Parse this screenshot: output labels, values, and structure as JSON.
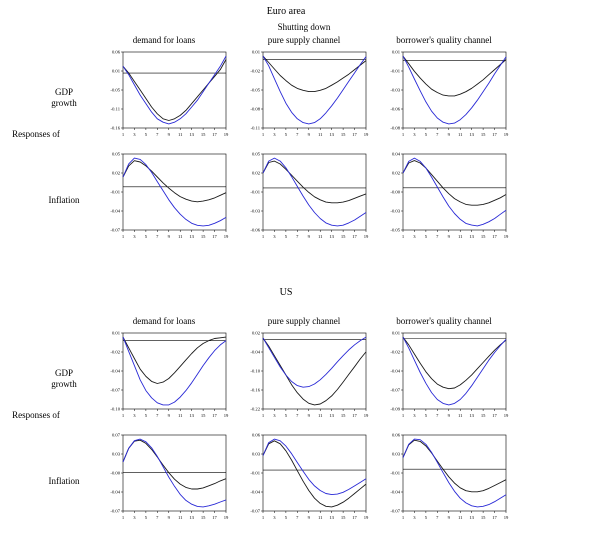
{
  "panels": [
    {
      "title": "Euro area",
      "side_label": "Responses of",
      "rows": [
        "GDP growth",
        "Inflation"
      ],
      "columns": [
        {
          "subtitle": "",
          "label": "demand for loans"
        },
        {
          "subtitle": "Shutting down",
          "label": "pure supply channel"
        },
        {
          "subtitle": "",
          "label": "borrower's quality channel"
        }
      ]
    },
    {
      "title": "US",
      "side_label": "Responses of",
      "rows": [
        "GDP growth",
        "Inflation"
      ],
      "columns": [
        {
          "subtitle": "",
          "label": "demand for loans"
        },
        {
          "subtitle": "",
          "label": "pure supply channel"
        },
        {
          "subtitle": "",
          "label": "borrower's quality channel"
        }
      ]
    }
  ],
  "line_colors": {
    "black": "#1a1a1a",
    "blue": "#2929d6"
  },
  "chart_data": [
    {
      "type": "line",
      "panel": "Euro area",
      "row": "GDP growth",
      "column": "demand for loans",
      "x_start": 1,
      "x_step": 1,
      "xticks": [
        1,
        3,
        5,
        7,
        9,
        11,
        13,
        15,
        17,
        19
      ],
      "series": [
        {
          "name": "black",
          "color": "#1a1a1a",
          "values": [
            0.02,
            0.0,
            -0.025,
            -0.05,
            -0.075,
            -0.1,
            -0.12,
            -0.135,
            -0.14,
            -0.135,
            -0.125,
            -0.11,
            -0.09,
            -0.07,
            -0.05,
            -0.03,
            -0.01,
            0.01,
            0.04
          ]
        },
        {
          "name": "blue",
          "color": "#2929d6",
          "values": [
            0.02,
            -0.005,
            -0.035,
            -0.065,
            -0.09,
            -0.115,
            -0.135,
            -0.145,
            -0.15,
            -0.145,
            -0.135,
            -0.12,
            -0.1,
            -0.08,
            -0.055,
            -0.03,
            -0.005,
            0.02,
            0.05
          ]
        }
      ]
    },
    {
      "type": "line",
      "panel": "Euro area",
      "row": "GDP growth",
      "column": "pure supply channel",
      "x_start": 1,
      "x_step": 1,
      "xticks": [
        1,
        3,
        5,
        7,
        9,
        11,
        13,
        15,
        17,
        19
      ],
      "series": [
        {
          "name": "black",
          "color": "#1a1a1a",
          "values": [
            0.005,
            -0.005,
            -0.015,
            -0.025,
            -0.033,
            -0.04,
            -0.045,
            -0.048,
            -0.05,
            -0.05,
            -0.048,
            -0.045,
            -0.04,
            -0.035,
            -0.029,
            -0.023,
            -0.016,
            -0.009,
            -0.002
          ]
        },
        {
          "name": "blue",
          "color": "#2929d6",
          "values": [
            0.005,
            -0.01,
            -0.03,
            -0.05,
            -0.068,
            -0.082,
            -0.092,
            -0.098,
            -0.1,
            -0.098,
            -0.092,
            -0.083,
            -0.072,
            -0.06,
            -0.047,
            -0.034,
            -0.021,
            -0.008,
            0.004
          ]
        }
      ]
    },
    {
      "type": "line",
      "panel": "Euro area",
      "row": "GDP growth",
      "column": "borrower's quality channel",
      "x_start": 1,
      "x_step": 1,
      "xticks": [
        1,
        3,
        5,
        7,
        9,
        11,
        13,
        15,
        17,
        19
      ],
      "series": [
        {
          "name": "black",
          "color": "#1a1a1a",
          "values": [
            0.005,
            -0.004,
            -0.013,
            -0.021,
            -0.028,
            -0.034,
            -0.038,
            -0.041,
            -0.042,
            -0.042,
            -0.04,
            -0.037,
            -0.033,
            -0.028,
            -0.023,
            -0.017,
            -0.011,
            -0.005,
            0.001
          ]
        },
        {
          "name": "blue",
          "color": "#2929d6",
          "values": [
            0.005,
            -0.008,
            -0.022,
            -0.036,
            -0.049,
            -0.06,
            -0.068,
            -0.073,
            -0.075,
            -0.074,
            -0.07,
            -0.064,
            -0.056,
            -0.047,
            -0.037,
            -0.027,
            -0.016,
            -0.006,
            0.004
          ]
        }
      ]
    },
    {
      "type": "line",
      "panel": "Euro area",
      "row": "Inflation",
      "column": "demand for loans",
      "x_start": 1,
      "x_step": 1,
      "xticks": [
        1,
        3,
        5,
        7,
        9,
        11,
        13,
        15,
        17,
        19
      ],
      "series": [
        {
          "name": "black",
          "color": "#1a1a1a",
          "values": [
            0.015,
            0.032,
            0.04,
            0.038,
            0.032,
            0.024,
            0.015,
            0.006,
            -0.002,
            -0.009,
            -0.015,
            -0.019,
            -0.022,
            -0.023,
            -0.022,
            -0.02,
            -0.017,
            -0.013,
            -0.009
          ]
        },
        {
          "name": "blue",
          "color": "#2929d6",
          "values": [
            0.015,
            0.035,
            0.044,
            0.042,
            0.034,
            0.022,
            0.008,
            -0.006,
            -0.02,
            -0.032,
            -0.042,
            -0.05,
            -0.056,
            -0.059,
            -0.06,
            -0.059,
            -0.056,
            -0.052,
            -0.047
          ]
        }
      ]
    },
    {
      "type": "line",
      "panel": "Euro area",
      "row": "Inflation",
      "column": "pure supply channel",
      "x_start": 1,
      "x_step": 1,
      "xticks": [
        1,
        3,
        5,
        7,
        9,
        11,
        13,
        15,
        17,
        19
      ],
      "series": [
        {
          "name": "black",
          "color": "#1a1a1a",
          "values": [
            0.02,
            0.034,
            0.036,
            0.032,
            0.025,
            0.017,
            0.009,
            0.001,
            -0.006,
            -0.012,
            -0.016,
            -0.019,
            -0.02,
            -0.02,
            -0.019,
            -0.017,
            -0.014,
            -0.011,
            -0.008
          ]
        },
        {
          "name": "blue",
          "color": "#2929d6",
          "values": [
            0.02,
            0.036,
            0.04,
            0.036,
            0.027,
            0.015,
            0.002,
            -0.011,
            -0.023,
            -0.033,
            -0.041,
            -0.047,
            -0.05,
            -0.051,
            -0.05,
            -0.047,
            -0.043,
            -0.038,
            -0.033
          ]
        }
      ]
    },
    {
      "type": "line",
      "panel": "Euro area",
      "row": "Inflation",
      "column": "borrower's quality channel",
      "x_start": 1,
      "x_step": 1,
      "xticks": [
        1,
        3,
        5,
        7,
        9,
        11,
        13,
        15,
        17,
        19
      ],
      "series": [
        {
          "name": "black",
          "color": "#1a1a1a",
          "values": [
            0.018,
            0.03,
            0.033,
            0.03,
            0.024,
            0.016,
            0.008,
            0.0,
            -0.007,
            -0.013,
            -0.017,
            -0.02,
            -0.021,
            -0.021,
            -0.02,
            -0.018,
            -0.015,
            -0.012,
            -0.008
          ]
        },
        {
          "name": "blue",
          "color": "#2929d6",
          "values": [
            0.018,
            0.032,
            0.036,
            0.032,
            0.024,
            0.013,
            0.001,
            -0.011,
            -0.022,
            -0.031,
            -0.038,
            -0.043,
            -0.045,
            -0.046,
            -0.044,
            -0.041,
            -0.037,
            -0.032,
            -0.027
          ]
        }
      ]
    },
    {
      "type": "line",
      "panel": "US",
      "row": "GDP growth",
      "column": "demand for loans",
      "x_start": 1,
      "x_step": 1,
      "xticks": [
        1,
        3,
        5,
        7,
        9,
        11,
        13,
        15,
        17,
        19
      ],
      "series": [
        {
          "name": "black",
          "color": "#1a1a1a",
          "values": [
            0.005,
            -0.01,
            -0.025,
            -0.04,
            -0.05,
            -0.057,
            -0.06,
            -0.058,
            -0.053,
            -0.045,
            -0.036,
            -0.027,
            -0.018,
            -0.01,
            -0.004,
            0.0,
            0.003,
            0.004,
            0.005
          ]
        },
        {
          "name": "blue",
          "color": "#2929d6",
          "values": [
            0.005,
            -0.015,
            -0.035,
            -0.055,
            -0.07,
            -0.08,
            -0.087,
            -0.09,
            -0.09,
            -0.086,
            -0.079,
            -0.07,
            -0.059,
            -0.047,
            -0.035,
            -0.024,
            -0.014,
            -0.006,
            0.0
          ]
        }
      ]
    },
    {
      "type": "line",
      "panel": "US",
      "row": "GDP growth",
      "column": "pure supply channel",
      "x_start": 1,
      "x_step": 1,
      "xticks": [
        1,
        3,
        5,
        7,
        9,
        11,
        13,
        15,
        17,
        19
      ],
      "series": [
        {
          "name": "black",
          "color": "#1a1a1a",
          "values": [
            0.005,
            -0.02,
            -0.05,
            -0.08,
            -0.11,
            -0.14,
            -0.165,
            -0.185,
            -0.198,
            -0.203,
            -0.2,
            -0.19,
            -0.175,
            -0.155,
            -0.132,
            -0.108,
            -0.084,
            -0.06,
            -0.038
          ]
        },
        {
          "name": "blue",
          "color": "#2929d6",
          "values": [
            0.005,
            -0.025,
            -0.055,
            -0.085,
            -0.11,
            -0.13,
            -0.143,
            -0.148,
            -0.146,
            -0.138,
            -0.125,
            -0.108,
            -0.089,
            -0.069,
            -0.05,
            -0.032,
            -0.016,
            -0.003,
            0.008
          ]
        }
      ]
    },
    {
      "type": "line",
      "panel": "US",
      "row": "GDP growth",
      "column": "borrower's quality channel",
      "x_start": 1,
      "x_step": 1,
      "xticks": [
        1,
        3,
        5,
        7,
        9,
        11,
        13,
        15,
        17,
        19
      ],
      "series": [
        {
          "name": "black",
          "color": "#1a1a1a",
          "values": [
            0.002,
            -0.008,
            -0.02,
            -0.032,
            -0.043,
            -0.052,
            -0.059,
            -0.063,
            -0.065,
            -0.064,
            -0.06,
            -0.054,
            -0.047,
            -0.039,
            -0.031,
            -0.023,
            -0.015,
            -0.008,
            -0.002
          ]
        },
        {
          "name": "blue",
          "color": "#2929d6",
          "values": [
            0.002,
            -0.012,
            -0.028,
            -0.044,
            -0.058,
            -0.07,
            -0.079,
            -0.084,
            -0.086,
            -0.084,
            -0.079,
            -0.071,
            -0.061,
            -0.05,
            -0.039,
            -0.028,
            -0.018,
            -0.009,
            -0.001
          ]
        }
      ]
    },
    {
      "type": "line",
      "panel": "US",
      "row": "Inflation",
      "column": "demand for loans",
      "x_start": 1,
      "x_step": 1,
      "xticks": [
        1,
        3,
        5,
        7,
        9,
        11,
        13,
        15,
        17,
        19
      ],
      "series": [
        {
          "name": "black",
          "color": "#1a1a1a",
          "values": [
            0.02,
            0.045,
            0.058,
            0.06,
            0.054,
            0.043,
            0.029,
            0.014,
            0.0,
            -0.012,
            -0.021,
            -0.027,
            -0.03,
            -0.03,
            -0.028,
            -0.024,
            -0.02,
            -0.015,
            -0.011
          ]
        },
        {
          "name": "blue",
          "color": "#2929d6",
          "values": [
            0.02,
            0.045,
            0.059,
            0.062,
            0.057,
            0.046,
            0.03,
            0.011,
            -0.008,
            -0.025,
            -0.04,
            -0.051,
            -0.058,
            -0.062,
            -0.063,
            -0.061,
            -0.058,
            -0.054,
            -0.05
          ]
        }
      ]
    },
    {
      "type": "line",
      "panel": "US",
      "row": "Inflation",
      "column": "pure supply channel",
      "x_start": 1,
      "x_step": 1,
      "xticks": [
        1,
        3,
        5,
        7,
        9,
        11,
        13,
        15,
        17,
        19
      ],
      "series": [
        {
          "name": "black",
          "color": "#1a1a1a",
          "values": [
            0.025,
            0.045,
            0.05,
            0.045,
            0.033,
            0.017,
            -0.001,
            -0.019,
            -0.035,
            -0.048,
            -0.057,
            -0.062,
            -0.063,
            -0.06,
            -0.055,
            -0.048,
            -0.04,
            -0.032,
            -0.024
          ]
        },
        {
          "name": "blue",
          "color": "#2929d6",
          "values": [
            0.025,
            0.047,
            0.053,
            0.05,
            0.041,
            0.028,
            0.013,
            -0.002,
            -0.016,
            -0.027,
            -0.035,
            -0.04,
            -0.042,
            -0.041,
            -0.038,
            -0.033,
            -0.027,
            -0.021,
            -0.015
          ]
        }
      ]
    },
    {
      "type": "line",
      "panel": "US",
      "row": "Inflation",
      "column": "borrower's quality channel",
      "x_start": 1,
      "x_step": 1,
      "xticks": [
        1,
        3,
        5,
        7,
        9,
        11,
        13,
        15,
        17,
        19
      ],
      "series": [
        {
          "name": "black",
          "color": "#1a1a1a",
          "values": [
            0.02,
            0.042,
            0.05,
            0.048,
            0.04,
            0.028,
            0.014,
            0.0,
            -0.013,
            -0.024,
            -0.032,
            -0.037,
            -0.039,
            -0.039,
            -0.037,
            -0.033,
            -0.028,
            -0.023,
            -0.018
          ]
        },
        {
          "name": "blue",
          "color": "#2929d6",
          "values": [
            0.02,
            0.043,
            0.052,
            0.051,
            0.043,
            0.029,
            0.012,
            -0.006,
            -0.023,
            -0.038,
            -0.05,
            -0.058,
            -0.063,
            -0.065,
            -0.064,
            -0.061,
            -0.056,
            -0.05,
            -0.044
          ]
        }
      ]
    }
  ]
}
